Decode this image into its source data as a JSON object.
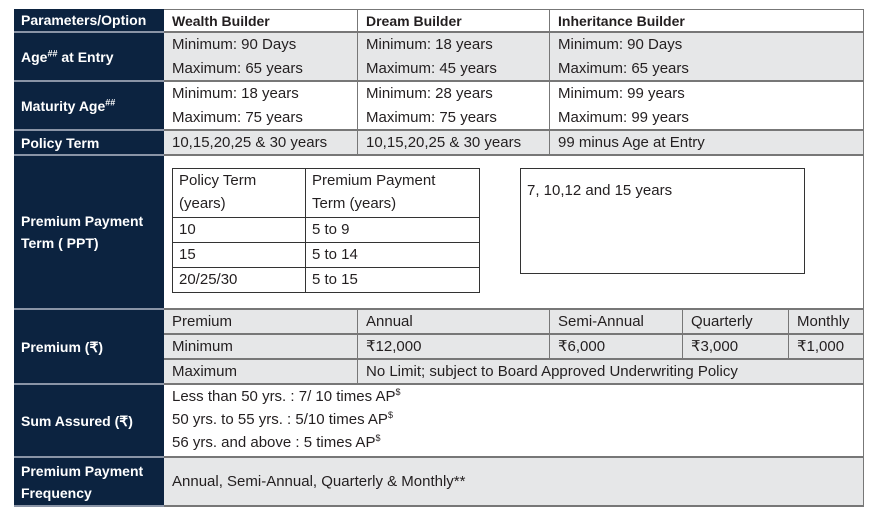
{
  "header": {
    "param": "Parameters/Option",
    "col1": "Wealth Builder",
    "col2": "Dream Builder",
    "col3": "Inheritance Builder"
  },
  "age_entry": {
    "label": "Age",
    "sup": "##",
    "label_suffix": " at Entry",
    "col1": [
      "Minimum: 90 Days",
      "Maximum: 65 years"
    ],
    "col2": [
      "Minimum: 18 years",
      "Maximum: 45 years"
    ],
    "col3": [
      "Minimum: 90 Days",
      "Maximum: 65 years"
    ]
  },
  "maturity_age": {
    "label": "Maturity Age",
    "sup": "##",
    "col1": [
      "Minimum: 18 years",
      "Maximum: 75 years"
    ],
    "col2": [
      "Minimum: 28 years",
      "Maximum: 75 years"
    ],
    "col3": [
      "Minimum: 99 years",
      "Maximum: 99 years"
    ]
  },
  "policy_term": {
    "label": "Policy Term",
    "col1": "10,15,20,25 & 30 years",
    "col2": "10,15,20,25 & 30 years",
    "col3": "99 minus Age at Entry"
  },
  "ppt": {
    "label": [
      "Premium Payment",
      "Term ( PPT)"
    ],
    "table": {
      "headers": [
        [
          "Policy Term",
          "(years)"
        ],
        [
          "Premium Payment",
          "Term (years)"
        ]
      ],
      "rows": [
        [
          "10",
          "5 to 9"
        ],
        [
          "15",
          "5 to 14"
        ],
        [
          "20/25/30",
          "5 to 15"
        ]
      ]
    },
    "inheritance": "7, 10,12 and 15 years"
  },
  "premium": {
    "label": "Premium (₹)",
    "headers": [
      "Premium",
      "Annual",
      "Semi-Annual",
      "Quarterly",
      "Monthly"
    ],
    "minimum": [
      "Minimum",
      "₹12,000",
      "₹6,000",
      "₹3,000",
      "₹1,000"
    ],
    "maximum": [
      "Maximum",
      "No Limit; subject to Board Approved Underwriting Policy"
    ]
  },
  "sum_assured": {
    "label": "Sum Assured (₹)",
    "sup": "$",
    "lines": [
      "Less than 50 yrs.  : 7/ 10 times AP",
      "50 yrs. to 55 yrs.  : 5/10 times AP",
      "56 yrs. and above : 5 times  AP"
    ]
  },
  "frequency": {
    "label": [
      "Premium Payment",
      "Frequency"
    ],
    "value": "Annual, Semi-Annual, Quarterly & Monthly**"
  }
}
